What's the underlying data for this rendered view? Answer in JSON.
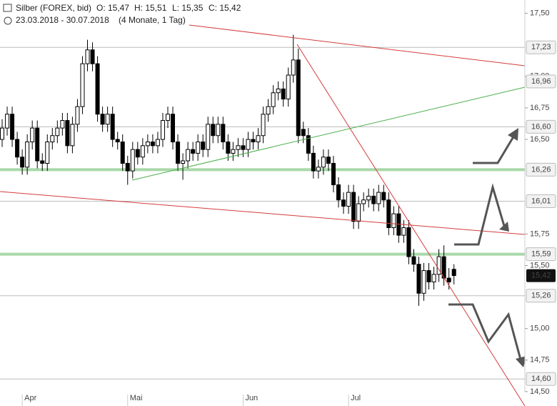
{
  "chart_data": {
    "type": "candlestick",
    "title": "Silber (FOREX, bid)",
    "ohlc_labels": [
      "O: 15,47",
      "H: 15,51",
      "L: 15,35",
      "C: 15,42"
    ],
    "subtitle": "23.03.2018 - 30.07.2018",
    "period": "(4 Monate, 1 Tag)",
    "up_color": "#ffffff",
    "down_color": "#000000",
    "ylim": [
      14.42,
      17.56
    ],
    "yticks": [
      {
        "value": 14.5,
        "label": "14,50"
      },
      {
        "value": 14.75,
        "label": "14,75"
      },
      {
        "value": 15,
        "label": "15,00"
      },
      {
        "value": 15.5,
        "label": "15,50"
      },
      {
        "value": 15.75,
        "label": "15,75"
      },
      {
        "value": 16.5,
        "label": "16,50"
      },
      {
        "value": 16.75,
        "label": "16,75"
      },
      {
        "value": 17,
        "label": "17,00"
      },
      {
        "value": 17.5,
        "label": "17,50"
      }
    ],
    "levels": [
      {
        "value": 17.23,
        "label": "17,23",
        "color": "#bbbbbb"
      },
      {
        "value": 16.96,
        "label": "16,96",
        "color": null
      },
      {
        "value": 16.6,
        "label": "16,60",
        "color": "#bbbbbb"
      },
      {
        "value": 16.26,
        "label": "16,26",
        "color": "#a8d8a8"
      },
      {
        "value": 16.01,
        "label": "16,01",
        "color": "#bbbbbb"
      },
      {
        "value": 15.59,
        "label": "15,59",
        "color": "#a8d8a8"
      },
      {
        "value": 15.26,
        "label": "15,26",
        "color": "#bbbbbb"
      },
      {
        "value": 14.6,
        "label": "14,60",
        "color": "#bbbbbb"
      }
    ],
    "last_price": {
      "value": 15.42,
      "label": "15,42"
    },
    "categories": [
      null,
      null,
      null,
      null,
      "Apr",
      null,
      null,
      null,
      null,
      null,
      null,
      null,
      null,
      null,
      null,
      null,
      null,
      null,
      null,
      null,
      null,
      null,
      null,
      null,
      null,
      "Mai",
      null,
      null,
      null,
      null,
      null,
      null,
      null,
      null,
      null,
      null,
      null,
      null,
      null,
      null,
      null,
      null,
      null,
      null,
      null,
      null,
      null,
      null,
      "Jun",
      null,
      null,
      null,
      null,
      null,
      null,
      null,
      null,
      null,
      null,
      null,
      null,
      null,
      null,
      null,
      null,
      null,
      null,
      null,
      null,
      "Jul",
      null,
      null,
      null,
      null,
      null,
      null,
      null,
      null,
      null,
      null,
      null,
      null,
      null,
      null,
      null,
      null,
      null,
      null,
      null,
      null,
      null
    ],
    "candles": [
      [
        16.5,
        16.66,
        16.44,
        16.59
      ],
      [
        16.59,
        16.76,
        16.53,
        16.7
      ],
      [
        16.7,
        16.76,
        16.44,
        16.5
      ],
      [
        16.5,
        16.56,
        16.3,
        16.36
      ],
      [
        16.36,
        16.42,
        16.22,
        16.28
      ],
      [
        16.28,
        16.54,
        16.22,
        16.48
      ],
      [
        16.48,
        16.65,
        16.42,
        16.59
      ],
      [
        16.59,
        16.65,
        16.27,
        16.33
      ],
      [
        16.33,
        16.39,
        16.25,
        16.31
      ],
      [
        16.31,
        16.54,
        16.25,
        16.48
      ],
      [
        16.48,
        16.59,
        16.42,
        16.53
      ],
      [
        16.53,
        16.65,
        16.47,
        16.59
      ],
      [
        16.59,
        16.71,
        16.53,
        16.65
      ],
      [
        16.65,
        16.71,
        16.39,
        16.45
      ],
      [
        16.45,
        16.68,
        16.39,
        16.62
      ],
      [
        16.62,
        16.82,
        16.56,
        16.76
      ],
      [
        16.76,
        17.16,
        16.7,
        17.1
      ],
      [
        17.1,
        17.29,
        17.04,
        17.21
      ],
      [
        17.21,
        17.27,
        17.04,
        17.1
      ],
      [
        17.1,
        17.16,
        16.64,
        16.7
      ],
      [
        16.7,
        16.76,
        16.56,
        16.62
      ],
      [
        16.62,
        16.76,
        16.56,
        16.7
      ],
      [
        16.7,
        16.76,
        16.44,
        16.5
      ],
      [
        16.5,
        16.56,
        16.42,
        16.48
      ],
      [
        16.48,
        16.54,
        16.25,
        16.31
      ],
      [
        16.31,
        16.37,
        16.14,
        16.25
      ],
      [
        16.25,
        16.48,
        16.19,
        16.42
      ],
      [
        16.42,
        16.48,
        16.3,
        16.36
      ],
      [
        16.36,
        16.51,
        16.3,
        16.45
      ],
      [
        16.45,
        16.54,
        16.39,
        16.48
      ],
      [
        16.48,
        16.54,
        16.39,
        16.45
      ],
      [
        16.45,
        16.56,
        16.39,
        16.5
      ],
      [
        16.5,
        16.71,
        16.44,
        16.65
      ],
      [
        16.65,
        16.76,
        16.59,
        16.7
      ],
      [
        16.7,
        16.76,
        16.42,
        16.48
      ],
      [
        16.48,
        16.54,
        16.25,
        16.31
      ],
      [
        16.31,
        16.39,
        16.18,
        16.33
      ],
      [
        16.33,
        16.48,
        16.27,
        16.42
      ],
      [
        16.42,
        16.48,
        16.33,
        16.39
      ],
      [
        16.39,
        16.54,
        16.33,
        16.48
      ],
      [
        16.48,
        16.54,
        16.36,
        16.42
      ],
      [
        16.42,
        16.68,
        16.36,
        16.62
      ],
      [
        16.62,
        16.68,
        16.47,
        16.53
      ],
      [
        16.53,
        16.68,
        16.47,
        16.62
      ],
      [
        16.62,
        16.68,
        16.42,
        16.48
      ],
      [
        16.48,
        16.54,
        16.33,
        16.39
      ],
      [
        16.39,
        16.48,
        16.33,
        16.42
      ],
      [
        16.42,
        16.51,
        16.36,
        16.45
      ],
      [
        16.45,
        16.51,
        16.36,
        16.42
      ],
      [
        16.42,
        16.56,
        16.36,
        16.5
      ],
      [
        16.5,
        16.56,
        16.42,
        16.48
      ],
      [
        16.48,
        16.59,
        16.42,
        16.53
      ],
      [
        16.53,
        16.76,
        16.47,
        16.7
      ],
      [
        16.7,
        16.82,
        16.64,
        16.76
      ],
      [
        16.76,
        16.93,
        16.7,
        16.87
      ],
      [
        16.87,
        16.96,
        16.81,
        16.9
      ],
      [
        16.9,
        16.96,
        16.76,
        16.82
      ],
      [
        16.82,
        17.07,
        16.76,
        17.01
      ],
      [
        17.01,
        17.33,
        16.95,
        17.13
      ],
      [
        17.13,
        17.22,
        16.47,
        16.53
      ],
      [
        16.58,
        16.64,
        16.47,
        16.53
      ],
      [
        16.53,
        16.59,
        16.33,
        16.39
      ],
      [
        16.39,
        16.45,
        16.19,
        16.25
      ],
      [
        16.25,
        16.34,
        16.19,
        16.28
      ],
      [
        16.28,
        16.42,
        16.22,
        16.36
      ],
      [
        16.36,
        16.42,
        16.25,
        16.31
      ],
      [
        16.31,
        16.37,
        16.08,
        16.14
      ],
      [
        16.14,
        16.2,
        15.96,
        16.02
      ],
      [
        16.02,
        16.08,
        15.91,
        15.97
      ],
      [
        15.97,
        16.14,
        15.91,
        16.08
      ],
      [
        16.08,
        16.14,
        15.79,
        15.85
      ],
      [
        15.85,
        16.05,
        15.79,
        15.99
      ],
      [
        15.99,
        16.08,
        15.93,
        16.02
      ],
      [
        16.02,
        16.11,
        15.96,
        16.05
      ],
      [
        16.05,
        16.11,
        15.93,
        15.99
      ],
      [
        15.99,
        16.14,
        15.93,
        16.08
      ],
      [
        16.08,
        16.14,
        15.96,
        16.02
      ],
      [
        16.02,
        16.08,
        15.74,
        15.8
      ],
      [
        15.8,
        15.97,
        15.74,
        15.91
      ],
      [
        15.91,
        15.97,
        15.68,
        15.74
      ],
      [
        15.74,
        15.86,
        15.68,
        15.8
      ],
      [
        15.8,
        15.86,
        15.51,
        15.57
      ],
      [
        15.57,
        15.63,
        15.45,
        15.51
      ],
      [
        15.51,
        15.57,
        15.18,
        15.28
      ],
      [
        15.28,
        15.52,
        15.22,
        15.46
      ],
      [
        15.46,
        15.52,
        15.31,
        15.37
      ],
      [
        15.37,
        15.49,
        15.31,
        15.43
      ],
      [
        15.43,
        15.63,
        15.37,
        15.57
      ],
      [
        15.57,
        15.66,
        15.34,
        15.4
      ],
      [
        15.4,
        15.48,
        15.31,
        15.37
      ],
      [
        15.47,
        15.51,
        15.35,
        15.42
      ]
    ]
  }
}
